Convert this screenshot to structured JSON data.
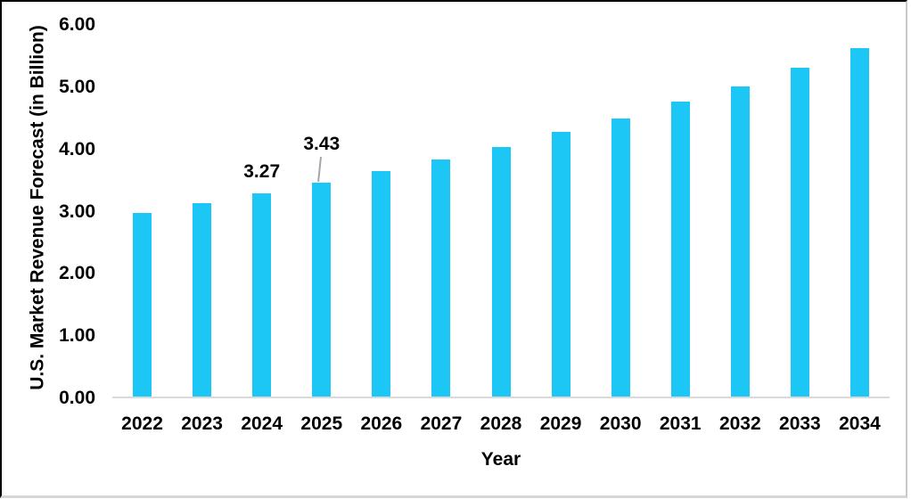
{
  "chart_data": {
    "type": "bar",
    "title": "",
    "xlabel": "Year",
    "ylabel": "U.S. Market Revenue Forecast (in Billion)",
    "categories": [
      "2022",
      "2023",
      "2024",
      "2025",
      "2026",
      "2027",
      "2028",
      "2029",
      "2030",
      "2031",
      "2032",
      "2033",
      "2034"
    ],
    "values": [
      2.95,
      3.11,
      3.27,
      3.43,
      3.63,
      3.81,
      4.01,
      4.25,
      4.47,
      4.74,
      4.99,
      5.29,
      5.6
    ],
    "ylim": [
      0,
      6
    ],
    "y_ticks": [
      "0.00",
      "1.00",
      "2.00",
      "3.00",
      "4.00",
      "5.00",
      "6.00"
    ],
    "y_tick_step": 1,
    "grid": false,
    "legend": false,
    "data_labels": [
      {
        "category": "2024",
        "text": "3.27",
        "leader_line": false
      },
      {
        "category": "2025",
        "text": "3.43",
        "leader_line": true
      }
    ],
    "colors": {
      "bar": "#1CC7F5",
      "axis_line": "#D9D9D9",
      "leader_line": "#A6A6A6",
      "text": "#000000"
    }
  }
}
